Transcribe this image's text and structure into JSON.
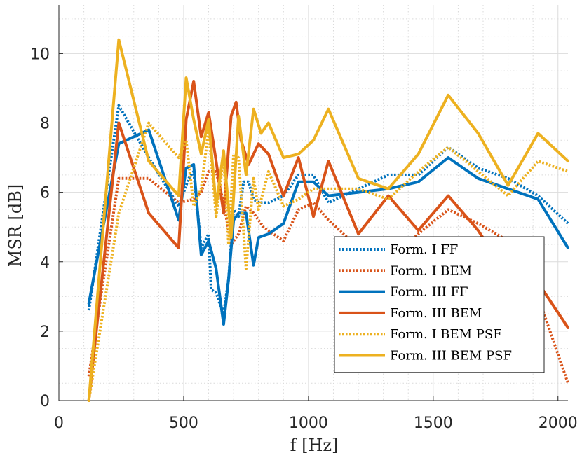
{
  "chart_data": {
    "type": "line",
    "title": "",
    "xlabel": "f [Hz]",
    "ylabel": "MSR [dB]",
    "xlim": [
      0,
      2040
    ],
    "ylim": [
      0,
      11.4
    ],
    "x_ticks": [
      0,
      500,
      1000,
      1500,
      2000
    ],
    "y_ticks": [
      0,
      2,
      4,
      6,
      8,
      10
    ],
    "x_tick_labels": [
      "0",
      "500",
      "1000",
      "1500",
      "2000"
    ],
    "y_tick_labels": [
      "0",
      "2",
      "4",
      "6",
      "8",
      "10"
    ],
    "grid": true,
    "minor_grid": true,
    "legend_position": "bottom-right",
    "series": [
      {
        "name": "Form. I FF",
        "color": "#0072BD",
        "style": "dotted",
        "points": [
          [
            120,
            2.6
          ],
          [
            240,
            8.5
          ],
          [
            360,
            7.0
          ],
          [
            480,
            5.6
          ],
          [
            520,
            6.4
          ],
          [
            540,
            6.6
          ],
          [
            570,
            4.4
          ],
          [
            600,
            4.8
          ],
          [
            610,
            3.2
          ],
          [
            630,
            3.1
          ],
          [
            660,
            2.5
          ],
          [
            680,
            3.5
          ],
          [
            700,
            5.5
          ],
          [
            720,
            5.3
          ],
          [
            740,
            6.3
          ],
          [
            760,
            6.3
          ],
          [
            780,
            5.8
          ],
          [
            800,
            5.7
          ],
          [
            840,
            5.7
          ],
          [
            900,
            5.9
          ],
          [
            960,
            6.5
          ],
          [
            1020,
            6.5
          ],
          [
            1080,
            5.7
          ],
          [
            1200,
            6.1
          ],
          [
            1320,
            6.5
          ],
          [
            1440,
            6.5
          ],
          [
            1560,
            7.3
          ],
          [
            1680,
            6.7
          ],
          [
            1800,
            6.4
          ],
          [
            1920,
            5.9
          ],
          [
            2040,
            5.1
          ]
        ]
      },
      {
        "name": "Form. I BEM",
        "color": "#D95319",
        "style": "dotted",
        "points": [
          [
            120,
            0.7
          ],
          [
            240,
            6.4
          ],
          [
            360,
            6.4
          ],
          [
            480,
            5.7
          ],
          [
            540,
            5.8
          ],
          [
            570,
            6.0
          ],
          [
            600,
            6.6
          ],
          [
            630,
            6.6
          ],
          [
            660,
            5.7
          ],
          [
            690,
            4.5
          ],
          [
            720,
            4.8
          ],
          [
            750,
            5.6
          ],
          [
            780,
            5.4
          ],
          [
            820,
            5.0
          ],
          [
            900,
            4.6
          ],
          [
            960,
            5.5
          ],
          [
            1020,
            5.7
          ],
          [
            1080,
            5.2
          ],
          [
            1200,
            4.4
          ],
          [
            1320,
            4.0
          ],
          [
            1440,
            4.8
          ],
          [
            1560,
            5.5
          ],
          [
            1680,
            5.1
          ],
          [
            1800,
            4.6
          ],
          [
            1920,
            3.0
          ],
          [
            2040,
            0.5
          ]
        ]
      },
      {
        "name": "Form. III FF",
        "color": "#0072BD",
        "style": "solid",
        "points": [
          [
            120,
            2.8
          ],
          [
            240,
            7.4
          ],
          [
            360,
            7.8
          ],
          [
            480,
            5.2
          ],
          [
            510,
            6.7
          ],
          [
            540,
            6.8
          ],
          [
            570,
            4.2
          ],
          [
            600,
            4.6
          ],
          [
            630,
            3.8
          ],
          [
            660,
            2.2
          ],
          [
            680,
            3.5
          ],
          [
            700,
            5.2
          ],
          [
            720,
            5.4
          ],
          [
            750,
            5.4
          ],
          [
            780,
            3.9
          ],
          [
            800,
            4.7
          ],
          [
            840,
            4.8
          ],
          [
            900,
            5.1
          ],
          [
            960,
            6.3
          ],
          [
            1020,
            6.3
          ],
          [
            1080,
            5.9
          ],
          [
            1200,
            6.0
          ],
          [
            1320,
            6.1
          ],
          [
            1440,
            6.3
          ],
          [
            1560,
            7.0
          ],
          [
            1680,
            6.4
          ],
          [
            1800,
            6.1
          ],
          [
            1920,
            5.8
          ],
          [
            2040,
            4.4
          ]
        ]
      },
      {
        "name": "Form. III BEM",
        "color": "#D95319",
        "style": "solid",
        "points": [
          [
            120,
            0.0
          ],
          [
            240,
            8.0
          ],
          [
            360,
            5.4
          ],
          [
            480,
            4.4
          ],
          [
            510,
            8.1
          ],
          [
            540,
            9.2
          ],
          [
            570,
            7.6
          ],
          [
            600,
            8.3
          ],
          [
            630,
            6.9
          ],
          [
            660,
            5.4
          ],
          [
            690,
            8.2
          ],
          [
            710,
            8.6
          ],
          [
            730,
            7.5
          ],
          [
            760,
            6.8
          ],
          [
            800,
            7.4
          ],
          [
            840,
            7.1
          ],
          [
            900,
            5.9
          ],
          [
            960,
            7.0
          ],
          [
            1020,
            5.3
          ],
          [
            1080,
            6.9
          ],
          [
            1200,
            4.8
          ],
          [
            1320,
            5.9
          ],
          [
            1440,
            4.9
          ],
          [
            1560,
            5.9
          ],
          [
            1680,
            4.9
          ],
          [
            1800,
            3.6
          ],
          [
            1920,
            3.4
          ],
          [
            2040,
            2.1
          ]
        ]
      },
      {
        "name": "Form. I BEM PSF",
        "color": "#EDB120",
        "style": "dotted",
        "points": [
          [
            120,
            0.0
          ],
          [
            240,
            5.4
          ],
          [
            360,
            8.0
          ],
          [
            480,
            7.0
          ],
          [
            510,
            7.5
          ],
          [
            540,
            5.6
          ],
          [
            570,
            6.1
          ],
          [
            600,
            7.8
          ],
          [
            630,
            5.3
          ],
          [
            660,
            7.0
          ],
          [
            680,
            4.5
          ],
          [
            700,
            7.1
          ],
          [
            720,
            7.0
          ],
          [
            750,
            3.8
          ],
          [
            780,
            6.4
          ],
          [
            800,
            5.5
          ],
          [
            840,
            6.6
          ],
          [
            900,
            5.6
          ],
          [
            960,
            5.8
          ],
          [
            1020,
            6.1
          ],
          [
            1080,
            6.1
          ],
          [
            1200,
            6.1
          ],
          [
            1320,
            5.8
          ],
          [
            1440,
            6.6
          ],
          [
            1560,
            7.3
          ],
          [
            1680,
            6.6
          ],
          [
            1800,
            5.9
          ],
          [
            1920,
            6.9
          ],
          [
            2040,
            6.6
          ]
        ]
      },
      {
        "name": "Form. III BEM PSF",
        "color": "#EDB120",
        "style": "solid",
        "points": [
          [
            120,
            0.0
          ],
          [
            240,
            10.4
          ],
          [
            360,
            6.9
          ],
          [
            480,
            5.9
          ],
          [
            510,
            9.3
          ],
          [
            540,
            8.1
          ],
          [
            570,
            7.1
          ],
          [
            600,
            8.1
          ],
          [
            630,
            5.6
          ],
          [
            660,
            7.2
          ],
          [
            690,
            4.7
          ],
          [
            720,
            8.2
          ],
          [
            750,
            6.5
          ],
          [
            780,
            8.4
          ],
          [
            810,
            7.7
          ],
          [
            840,
            8.0
          ],
          [
            900,
            7.0
          ],
          [
            960,
            7.1
          ],
          [
            1020,
            7.5
          ],
          [
            1080,
            8.4
          ],
          [
            1200,
            6.4
          ],
          [
            1320,
            6.1
          ],
          [
            1440,
            7.1
          ],
          [
            1560,
            8.8
          ],
          [
            1680,
            7.7
          ],
          [
            1800,
            6.2
          ],
          [
            1920,
            7.7
          ],
          [
            2040,
            6.9
          ]
        ]
      }
    ]
  }
}
